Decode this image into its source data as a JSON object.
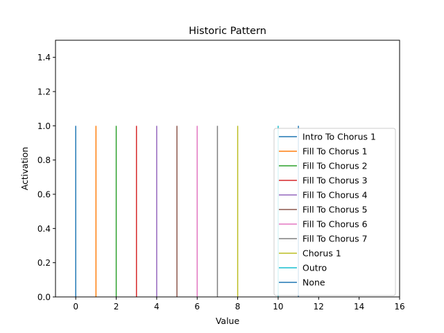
{
  "chart_data": {
    "type": "line",
    "title": "Historic Pattern",
    "xlabel": "Value",
    "ylabel": "Activation",
    "xlim": [
      -1,
      16
    ],
    "ylim": [
      0,
      1.5
    ],
    "xticks": [
      0,
      2,
      4,
      6,
      8,
      10,
      12,
      14,
      16
    ],
    "yticks": [
      0.0,
      0.2,
      0.4,
      0.6,
      0.8,
      1.0,
      1.2,
      1.4
    ],
    "xtick_labels": [
      "0",
      "2",
      "4",
      "6",
      "8",
      "10",
      "12",
      "14",
      "16"
    ],
    "ytick_labels": [
      "0.0",
      "0.2",
      "0.4",
      "0.6",
      "0.8",
      "1.0",
      "1.2",
      "1.4"
    ],
    "grid": false,
    "legend_position": "lower-right",
    "series": [
      {
        "name": "Intro To Chorus 1",
        "x": 0,
        "y": [
          0,
          1
        ],
        "color": "#1f77b4"
      },
      {
        "name": "Fill To Chorus 1",
        "x": 1,
        "y": [
          0,
          1
        ],
        "color": "#ff7f0e"
      },
      {
        "name": "Fill To Chorus 2",
        "x": 2,
        "y": [
          0,
          1
        ],
        "color": "#2ca02c"
      },
      {
        "name": "Fill To Chorus 3",
        "x": 3,
        "y": [
          0,
          1
        ],
        "color": "#d62728"
      },
      {
        "name": "Fill To Chorus 4",
        "x": 4,
        "y": [
          0,
          1
        ],
        "color": "#9467bd"
      },
      {
        "name": "Fill To Chorus 5",
        "x": 5,
        "y": [
          0,
          1
        ],
        "color": "#8c564b"
      },
      {
        "name": "Fill To Chorus 6",
        "x": 6,
        "y": [
          0,
          1
        ],
        "color": "#e377c2"
      },
      {
        "name": "Fill To Chorus 7",
        "x": 7,
        "y": [
          0,
          1
        ],
        "color": "#7f7f7f"
      },
      {
        "name": "Chorus 1",
        "x": 8,
        "y": [
          0,
          1
        ],
        "color": "#bcbd22"
      },
      {
        "name": "Outro",
        "x": 10,
        "y": [
          0,
          1
        ],
        "color": "#17becf"
      },
      {
        "name": "None",
        "x": 11,
        "y": [
          0,
          1
        ],
        "color": "#1f77b4"
      }
    ]
  }
}
